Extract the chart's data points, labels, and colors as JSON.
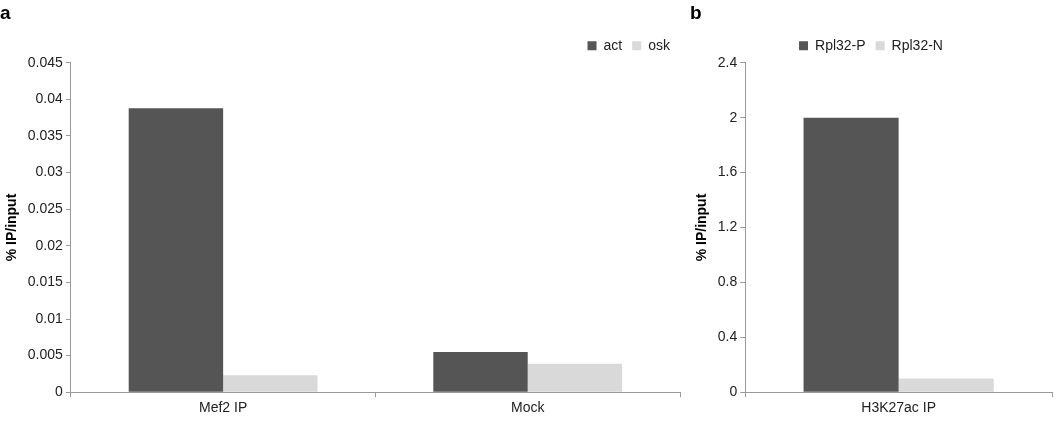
{
  "chart_data": [
    {
      "type": "bar",
      "title": "a",
      "ylabel": "% IP/input",
      "categories": [
        "Mef2 IP",
        "Mock"
      ],
      "series": [
        {
          "name": "act",
          "color": "#555555",
          "values": [
            0.0388,
            0.0055
          ]
        },
        {
          "name": "osk",
          "color": "#d9d9d9",
          "values": [
            0.0023,
            0.0039
          ]
        }
      ],
      "ylim": [
        0,
        0.045
      ],
      "yticks": [
        0,
        0.005,
        0.01,
        0.015,
        0.02,
        0.025,
        0.03,
        0.035,
        0.04,
        0.045
      ],
      "grid": false,
      "legend": "top right"
    },
    {
      "type": "bar",
      "title": "b",
      "ylabel": "% IP/input",
      "categories": [
        "H3K27ac IP"
      ],
      "series": [
        {
          "name": "Rpl32-P",
          "color": "#555555",
          "values": [
            2.0
          ]
        },
        {
          "name": "Rpl32-N",
          "color": "#d9d9d9",
          "values": [
            0.1
          ]
        }
      ],
      "ylim": [
        0,
        2.4
      ],
      "yticks": [
        0,
        0.4,
        0.8,
        1.2,
        1.6,
        2,
        2.4
      ],
      "grid": false,
      "legend": "top"
    }
  ]
}
